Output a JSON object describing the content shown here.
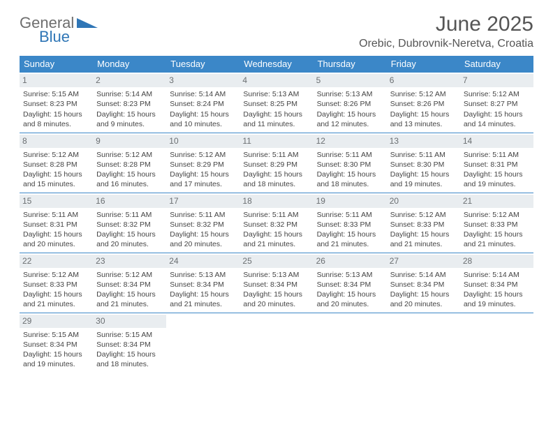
{
  "brand": {
    "word1": "General",
    "word2": "Blue"
  },
  "colors": {
    "header_bg": "#3b87c8",
    "header_text": "#ffffff",
    "row_border": "#3b87c8",
    "daynum_bg": "#e9edf0",
    "daynum_text": "#6b6f72",
    "body_text": "#444444",
    "title_text": "#555555",
    "logo_gray": "#6e6e6e",
    "logo_blue": "#2f76b6"
  },
  "title": "June 2025",
  "location": "Orebic, Dubrovnik-Neretva, Croatia",
  "weekdays": [
    "Sunday",
    "Monday",
    "Tuesday",
    "Wednesday",
    "Thursday",
    "Friday",
    "Saturday"
  ],
  "weeks": [
    [
      {
        "n": "1",
        "sr": "5:15 AM",
        "ss": "8:23 PM",
        "dl": "15 hours and 8 minutes."
      },
      {
        "n": "2",
        "sr": "5:14 AM",
        "ss": "8:23 PM",
        "dl": "15 hours and 9 minutes."
      },
      {
        "n": "3",
        "sr": "5:14 AM",
        "ss": "8:24 PM",
        "dl": "15 hours and 10 minutes."
      },
      {
        "n": "4",
        "sr": "5:13 AM",
        "ss": "8:25 PM",
        "dl": "15 hours and 11 minutes."
      },
      {
        "n": "5",
        "sr": "5:13 AM",
        "ss": "8:26 PM",
        "dl": "15 hours and 12 minutes."
      },
      {
        "n": "6",
        "sr": "5:12 AM",
        "ss": "8:26 PM",
        "dl": "15 hours and 13 minutes."
      },
      {
        "n": "7",
        "sr": "5:12 AM",
        "ss": "8:27 PM",
        "dl": "15 hours and 14 minutes."
      }
    ],
    [
      {
        "n": "8",
        "sr": "5:12 AM",
        "ss": "8:28 PM",
        "dl": "15 hours and 15 minutes."
      },
      {
        "n": "9",
        "sr": "5:12 AM",
        "ss": "8:28 PM",
        "dl": "15 hours and 16 minutes."
      },
      {
        "n": "10",
        "sr": "5:12 AM",
        "ss": "8:29 PM",
        "dl": "15 hours and 17 minutes."
      },
      {
        "n": "11",
        "sr": "5:11 AM",
        "ss": "8:29 PM",
        "dl": "15 hours and 18 minutes."
      },
      {
        "n": "12",
        "sr": "5:11 AM",
        "ss": "8:30 PM",
        "dl": "15 hours and 18 minutes."
      },
      {
        "n": "13",
        "sr": "5:11 AM",
        "ss": "8:30 PM",
        "dl": "15 hours and 19 minutes."
      },
      {
        "n": "14",
        "sr": "5:11 AM",
        "ss": "8:31 PM",
        "dl": "15 hours and 19 minutes."
      }
    ],
    [
      {
        "n": "15",
        "sr": "5:11 AM",
        "ss": "8:31 PM",
        "dl": "15 hours and 20 minutes."
      },
      {
        "n": "16",
        "sr": "5:11 AM",
        "ss": "8:32 PM",
        "dl": "15 hours and 20 minutes."
      },
      {
        "n": "17",
        "sr": "5:11 AM",
        "ss": "8:32 PM",
        "dl": "15 hours and 20 minutes."
      },
      {
        "n": "18",
        "sr": "5:11 AM",
        "ss": "8:32 PM",
        "dl": "15 hours and 21 minutes."
      },
      {
        "n": "19",
        "sr": "5:11 AM",
        "ss": "8:33 PM",
        "dl": "15 hours and 21 minutes."
      },
      {
        "n": "20",
        "sr": "5:12 AM",
        "ss": "8:33 PM",
        "dl": "15 hours and 21 minutes."
      },
      {
        "n": "21",
        "sr": "5:12 AM",
        "ss": "8:33 PM",
        "dl": "15 hours and 21 minutes."
      }
    ],
    [
      {
        "n": "22",
        "sr": "5:12 AM",
        "ss": "8:33 PM",
        "dl": "15 hours and 21 minutes."
      },
      {
        "n": "23",
        "sr": "5:12 AM",
        "ss": "8:34 PM",
        "dl": "15 hours and 21 minutes."
      },
      {
        "n": "24",
        "sr": "5:13 AM",
        "ss": "8:34 PM",
        "dl": "15 hours and 21 minutes."
      },
      {
        "n": "25",
        "sr": "5:13 AM",
        "ss": "8:34 PM",
        "dl": "15 hours and 20 minutes."
      },
      {
        "n": "26",
        "sr": "5:13 AM",
        "ss": "8:34 PM",
        "dl": "15 hours and 20 minutes."
      },
      {
        "n": "27",
        "sr": "5:14 AM",
        "ss": "8:34 PM",
        "dl": "15 hours and 20 minutes."
      },
      {
        "n": "28",
        "sr": "5:14 AM",
        "ss": "8:34 PM",
        "dl": "15 hours and 19 minutes."
      }
    ],
    [
      {
        "n": "29",
        "sr": "5:15 AM",
        "ss": "8:34 PM",
        "dl": "15 hours and 19 minutes."
      },
      {
        "n": "30",
        "sr": "5:15 AM",
        "ss": "8:34 PM",
        "dl": "15 hours and 18 minutes."
      },
      null,
      null,
      null,
      null,
      null
    ]
  ],
  "labels": {
    "sunrise": "Sunrise:",
    "sunset": "Sunset:",
    "daylight": "Daylight:"
  }
}
